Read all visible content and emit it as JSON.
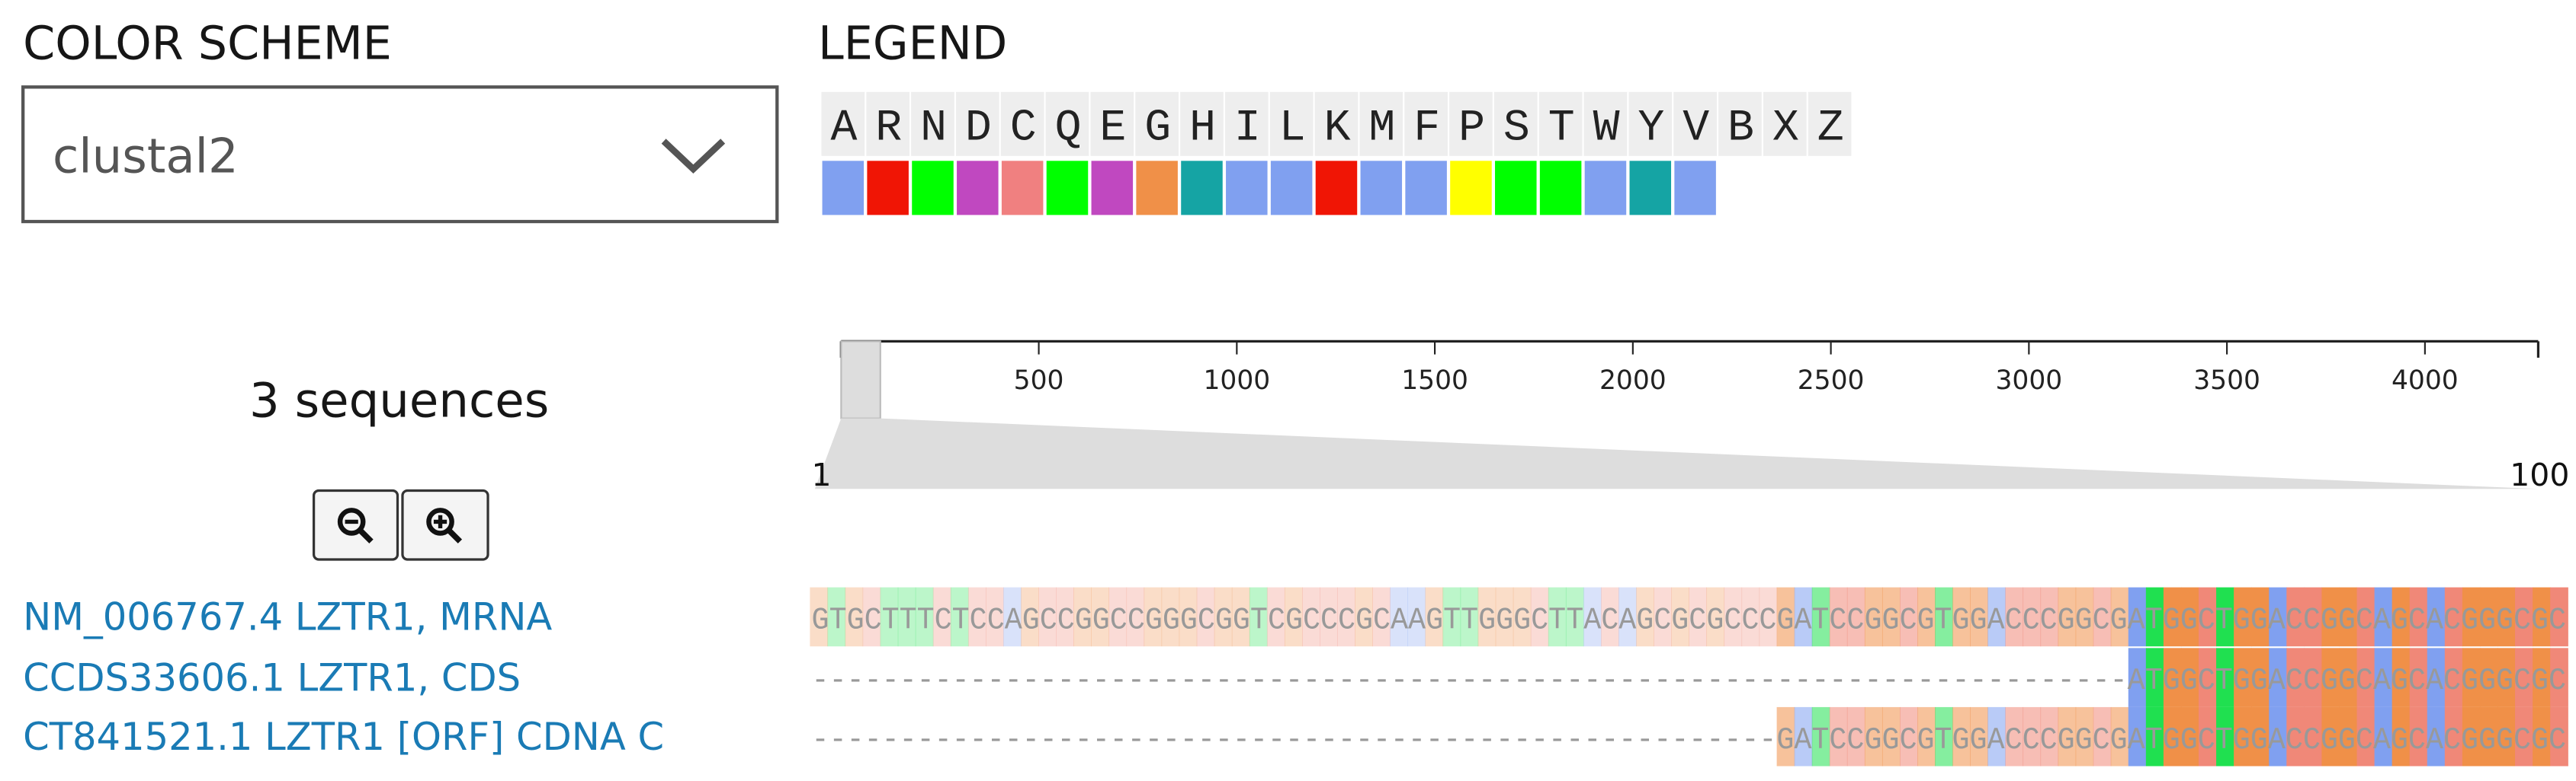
{
  "color_scheme": {
    "title": "COLOR SCHEME",
    "selected": "clustal2"
  },
  "legend": {
    "title": "LEGEND",
    "letters": [
      "A",
      "R",
      "N",
      "D",
      "C",
      "Q",
      "E",
      "G",
      "H",
      "I",
      "L",
      "K",
      "M",
      "F",
      "P",
      "S",
      "T",
      "W",
      "Y",
      "V",
      "B",
      "X",
      "Z"
    ],
    "colors": [
      "#80a0f0",
      "#f01505",
      "#00ff00",
      "#c048c0",
      "#f08080",
      "#00ff00",
      "#c048c0",
      "#f09048",
      "#15a4a4",
      "#80a0f0",
      "#80a0f0",
      "#f01505",
      "#80a0f0",
      "#80a0f0",
      "#ffff00",
      "#00ff00",
      "#00ff00",
      "#80a0f0",
      "#15a4a4",
      "#80a0f0",
      null,
      null,
      null
    ]
  },
  "sequence_count": "3 sequences",
  "ruler": {
    "xlim": [
      1,
      4286
    ],
    "xticks": [
      500,
      1000,
      1500,
      2000,
      2500,
      3000,
      3500,
      4000
    ],
    "view_start": 1,
    "view_end": 100
  },
  "sequences": [
    {
      "name": "NM_006767.4 LZTR1, MRNA",
      "seq": "GTGCTTTCTCCAGCCGGCCGGGCGGTCGCCCGCAAGTTGGGCTTACAGCGCGCCCGATCCGGCGTGGACCCGGCGATGGCTGGACCGGCAGCACGGGCGC"
    },
    {
      "name": "CCDS33606.1 LZTR1, CDS",
      "seq": "---------------------------------------------------------------------------ATGGCTGGACCGGCAGCACGGGCGC"
    },
    {
      "name": "CT841521.1 LZTR1 [ORF] CDNA C",
      "seq": "-------------------------------------------------------GATCCGGCGTGGACCCGGCGATGGCTGGACCGGCAGCACGGGCGC"
    }
  ]
}
